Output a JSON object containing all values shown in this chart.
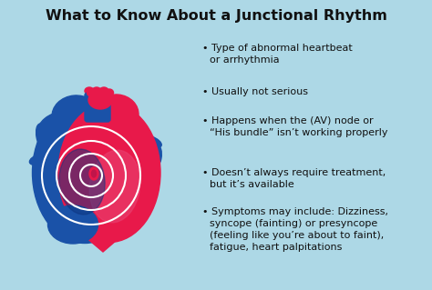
{
  "title": "What to Know About a Junctional Rhythm",
  "background_color": "#add8e6",
  "title_color": "#111111",
  "text_color": "#111111",
  "bullet_points": [
    "Type of abnormal heartbeat\nor arrhythmia",
    "Usually not serious",
    "Happens when the (AV) node or\n“His bundle” isn’t working properly",
    "Doesn’t always require treatment,\nbut it’s available",
    "Symptoms may include: Dizziness,\nsyncope (fainting) or presyncope\n(feeling like you’re about to faint),\nfatigue, heart palpitations"
  ],
  "heart_red": "#e8194a",
  "heart_dark_red": "#c0154a",
  "heart_pink": "#e84070",
  "heart_blue": "#1a52a8",
  "heart_dark_blue": "#0d3580",
  "ring_color": "#ffffff",
  "title_fontsize": 11.5,
  "bullet_fontsize": 8.0,
  "fig_width": 4.74,
  "fig_height": 3.19,
  "dpi": 100
}
